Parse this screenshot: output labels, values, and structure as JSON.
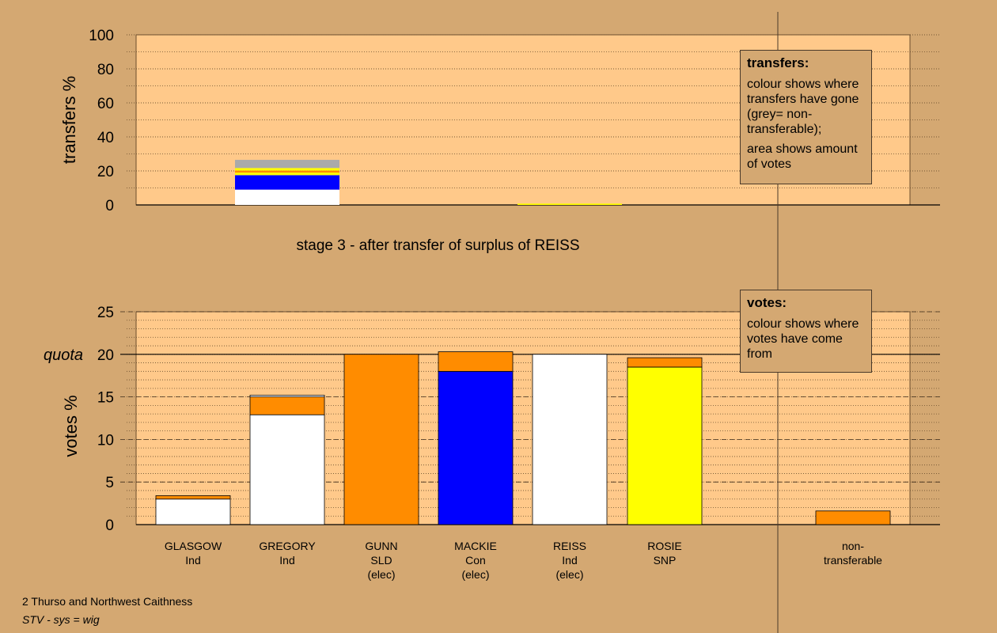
{
  "chart_data": [
    {
      "type": "bar",
      "stacked": true,
      "ylabel": "transfers %",
      "ylim": [
        0,
        100
      ],
      "yticks": [
        0,
        20,
        40,
        60,
        80,
        100
      ],
      "grid": "dotted",
      "title": "stage 3 - after transfer of surplus of REISS",
      "bars": [
        {
          "position": "GREGORY",
          "segments": [
            {
              "color": "#ffffff",
              "value": 9
            },
            {
              "color": "#0000ff",
              "value": 8.5
            },
            {
              "color": "#ffff00",
              "value": 1.5
            },
            {
              "color": "#ff8c00",
              "value": 1.2
            },
            {
              "color": "#ffff00",
              "value": 1.5
            },
            {
              "color": "#aaaaaa",
              "value": 4.8
            }
          ]
        },
        {
          "position": "REISS",
          "segments": [
            {
              "color": "#ffff00",
              "value": 0.8
            }
          ]
        }
      ],
      "legend": {
        "title": "transfers:",
        "lines": [
          "colour shows where transfers have gone (grey= non-transferable);",
          "area shows amount of votes"
        ],
        "placement": "top-right"
      }
    },
    {
      "type": "bar",
      "stacked": true,
      "ylabel": "votes %",
      "ylim": [
        0,
        25
      ],
      "yticks": [
        0,
        5,
        10,
        15,
        20,
        25
      ],
      "quota": 20,
      "quota_label": "quota",
      "grid": "dotted",
      "categories": [
        "GLASGOW",
        "GREGORY",
        "GUNN",
        "MACKIE",
        "REISS",
        "ROSIE",
        "non-transferable"
      ],
      "category_labels": [
        [
          "GLASGOW",
          "Ind"
        ],
        [
          "GREGORY",
          "Ind"
        ],
        [
          "GUNN",
          "SLD",
          "(elec)"
        ],
        [
          "MACKIE",
          "Con",
          "(elec)"
        ],
        [
          "REISS",
          "Ind",
          "(elec)"
        ],
        [
          "ROSIE",
          "SNP"
        ],
        [
          "non-",
          "transferable"
        ]
      ],
      "series": [
        {
          "color": "#ffffff",
          "values": [
            3.0,
            12.9,
            0,
            0,
            20.0,
            0,
            0
          ]
        },
        {
          "color": "#0000ff",
          "values": [
            0,
            0,
            0,
            18.0,
            0,
            0,
            0
          ]
        },
        {
          "color": "#ffff00",
          "values": [
            0,
            0,
            0,
            0,
            0,
            18.5,
            0
          ]
        },
        {
          "color": "#ff8c00",
          "values": [
            0.4,
            2.1,
            20.0,
            2.3,
            0,
            1.1,
            1.6
          ]
        },
        {
          "color": "#ffffff",
          "values": [
            0,
            0.2,
            0,
            0,
            0,
            0,
            0
          ]
        }
      ],
      "legend": {
        "title": "votes:",
        "lines": [
          "colour shows where votes have come from"
        ],
        "placement": "top-right"
      }
    }
  ],
  "footer": {
    "constituency": "2 Thurso and Northwest Caithness",
    "system": "STV - sys = wig"
  }
}
